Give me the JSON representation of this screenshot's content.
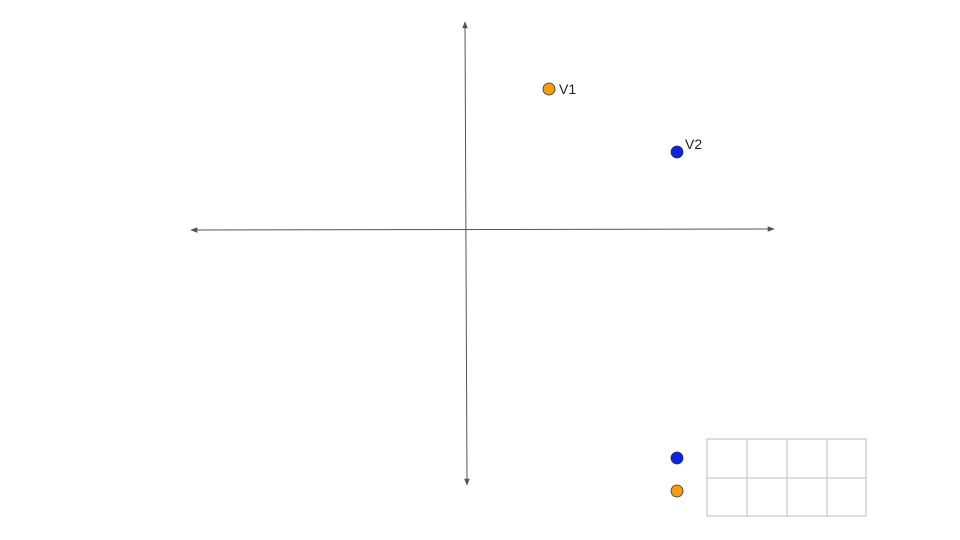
{
  "diagram": {
    "points": [
      {
        "label": "V1",
        "color": "#f39c12"
      },
      {
        "label": "V2",
        "color": "#0a24e6"
      }
    ],
    "legend": {
      "rows": [
        {
          "color": "#0a24e6",
          "cells": [
            "",
            "",
            "",
            ""
          ]
        },
        {
          "color": "#f39c12",
          "cells": [
            "",
            "",
            "",
            ""
          ]
        }
      ]
    }
  }
}
